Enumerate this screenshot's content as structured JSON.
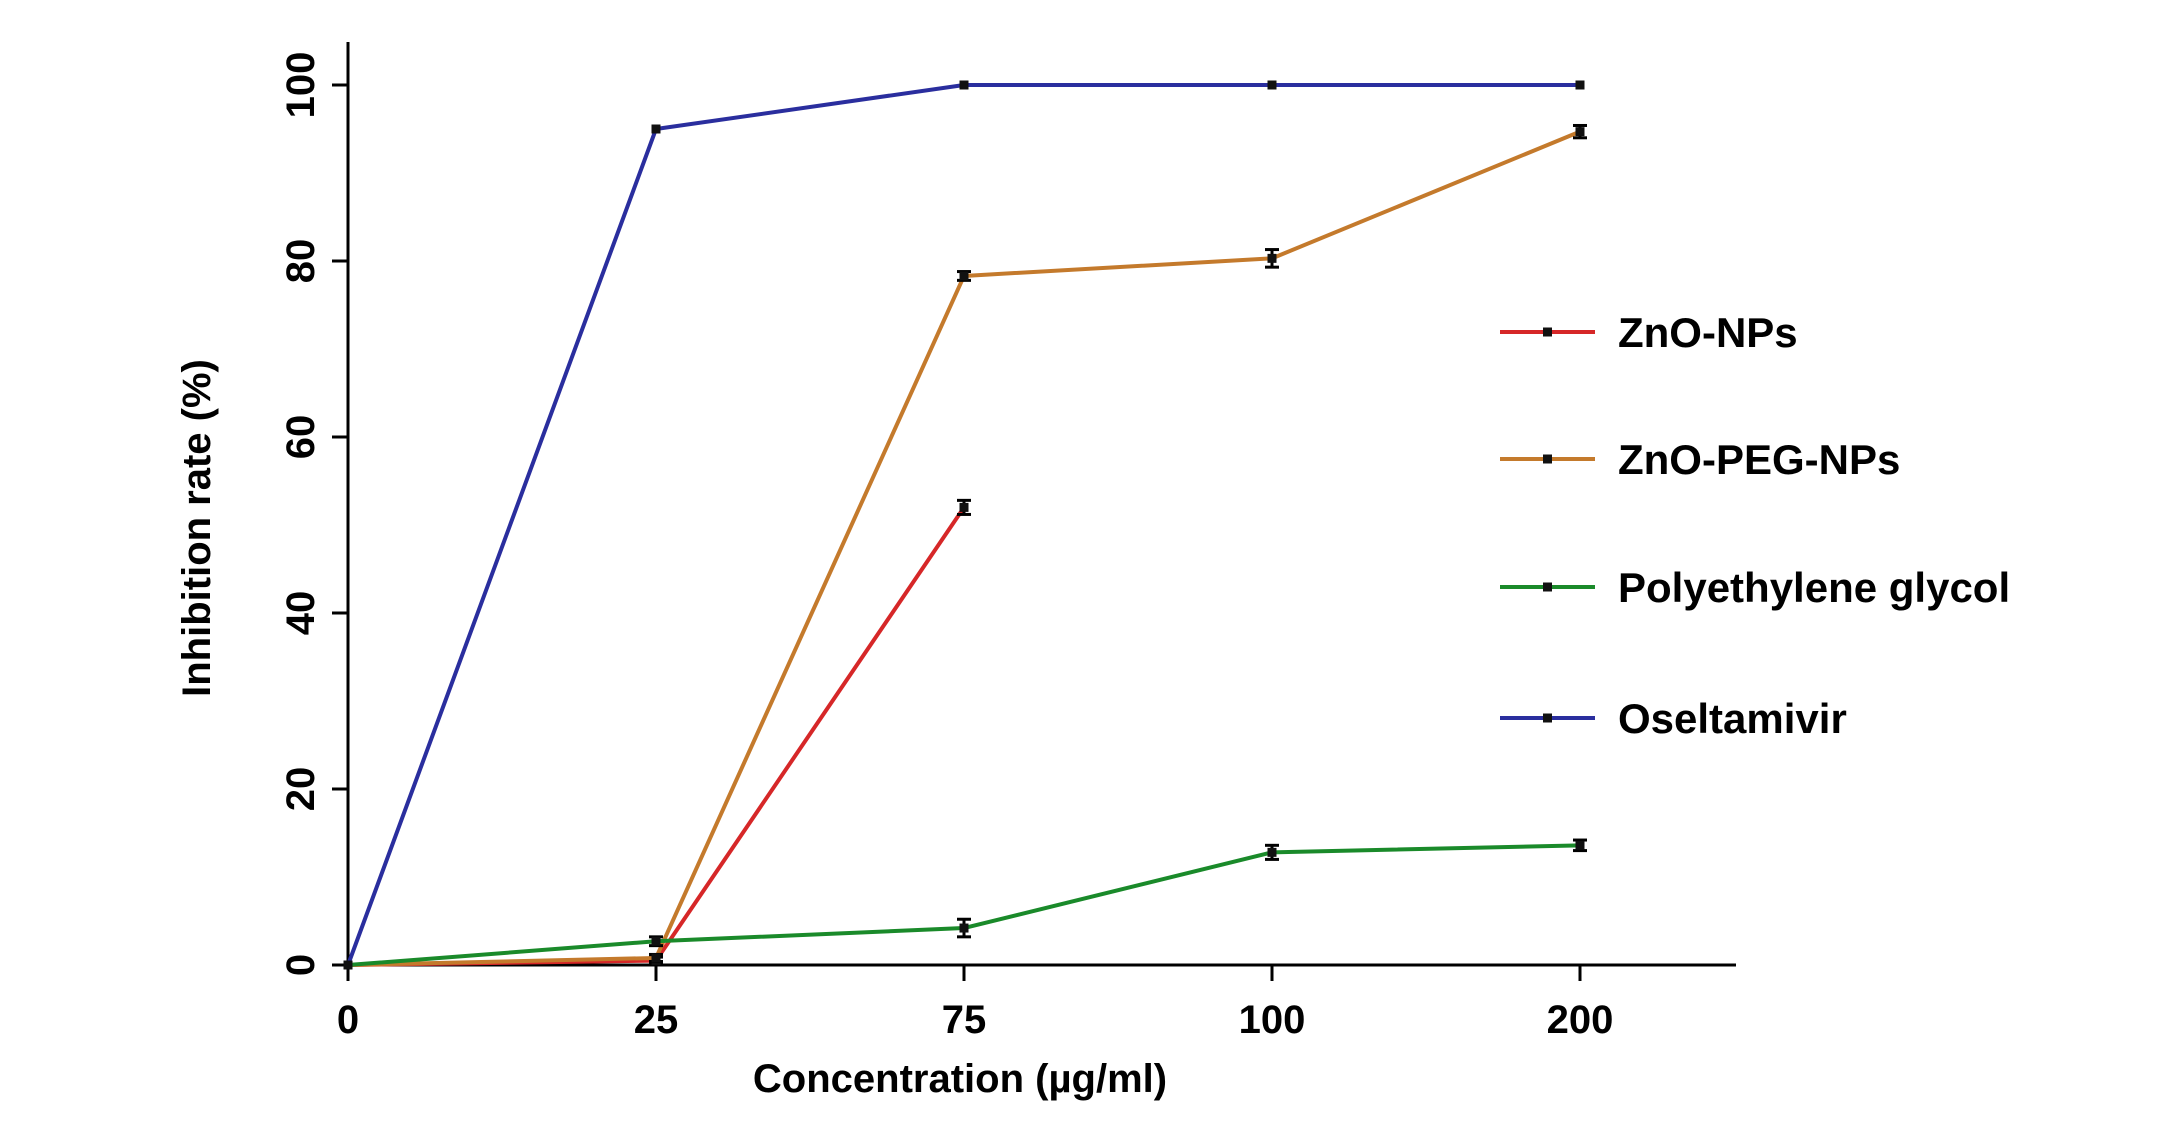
{
  "chart_data": {
    "type": "line",
    "xlabel": "Concentration (µg/ml)",
    "ylabel": "Inhibition rate (%)",
    "categories": [
      "0",
      "25",
      "75",
      "100",
      "200"
    ],
    "yticks": [
      0,
      20,
      40,
      60,
      80,
      100
    ],
    "ylim": [
      0,
      100
    ],
    "grid": false,
    "legend_position": "right",
    "series": [
      {
        "name": "ZnO-NPs",
        "color": "#d62728",
        "values": [
          0,
          0.5,
          52,
          null,
          null
        ],
        "errors": [
          0,
          0.4,
          0.8,
          null,
          null
        ]
      },
      {
        "name": "ZnO-PEG-NPs",
        "color": "#c47a2c",
        "values": [
          0,
          0.8,
          78.3,
          80.3,
          94.7
        ],
        "errors": [
          0,
          0.4,
          0.5,
          1.0,
          0.7
        ]
      },
      {
        "name": "Polyethylene glycol",
        "color": "#1a8a2a",
        "values": [
          0,
          2.7,
          4.2,
          12.8,
          13.6
        ],
        "errors": [
          0,
          0.5,
          1.0,
          0.8,
          0.6
        ]
      },
      {
        "name": "Oseltamivir",
        "color": "#2a2e9e",
        "values": [
          0,
          95,
          100,
          100,
          100
        ],
        "errors": [
          0,
          0,
          0,
          0,
          0
        ]
      }
    ]
  }
}
